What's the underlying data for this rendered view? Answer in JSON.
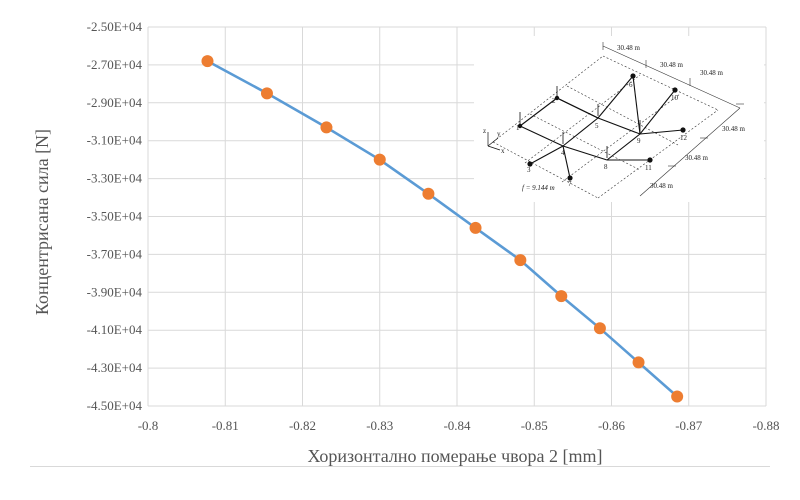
{
  "chart_data": {
    "type": "line",
    "xlabel": "Хоризонтално померање чвора 2 [mm]",
    "ylabel": "Концентрисана сила [N]",
    "xlim": [
      -0.8,
      -0.88
    ],
    "ylim": [
      -45000,
      -25000
    ],
    "x_ticks": [
      "-0.8",
      "-0.81",
      "-0.82",
      "-0.83",
      "-0.84",
      "-0.85",
      "-0.86",
      "-0.87",
      "-0.88"
    ],
    "y_ticks": [
      "-2.50E+04",
      "-2.70E+04",
      "-2.90E+04",
      "-3.10E+04",
      "-3.30E+04",
      "-3.50E+04",
      "-3.70E+04",
      "-3.90E+04",
      "-4.10E+04",
      "-4.30E+04",
      "-4.50E+04"
    ],
    "grid": true,
    "line_color": "#5b9bd5",
    "marker_color": "#ed7d31",
    "series": [
      {
        "x": [
          -0.8077,
          -0.8154,
          -0.8231,
          -0.83,
          -0.8363,
          -0.8424,
          -0.8482,
          -0.8535,
          -0.8585,
          -0.8635,
          -0.8685
        ],
        "y": [
          -26800,
          -28500,
          -30300,
          -32000,
          -33800,
          -35600,
          -37300,
          -39200,
          -40900,
          -42700,
          -44500
        ]
      }
    ]
  },
  "inset": {
    "dims": [
      "30.48 m",
      "30.48 m",
      "30.48 m",
      "30.48 m",
      "30.48 m",
      "30.48 m"
    ],
    "height_label": "f = 9.144 m",
    "nodes": [
      "1",
      "2",
      "3",
      "4",
      "5",
      "6",
      "7",
      "8",
      "9",
      "10",
      "11",
      "12"
    ],
    "axes": [
      "z",
      "y",
      "x"
    ]
  }
}
